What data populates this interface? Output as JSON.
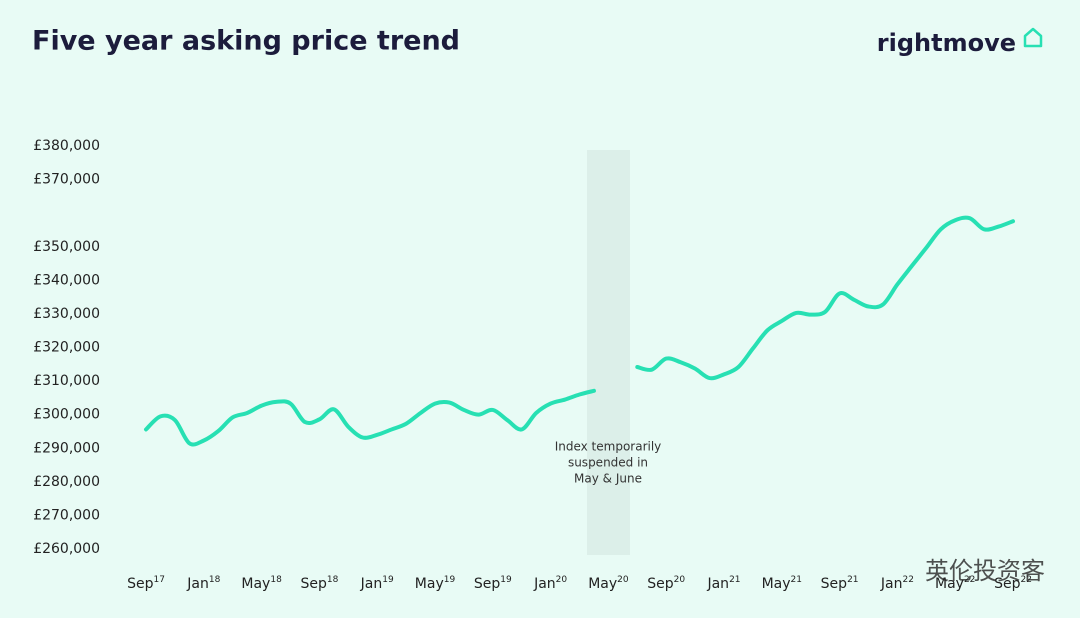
{
  "chart_data": {
    "type": "line",
    "title": "Five year asking price trend",
    "brand": "rightmove",
    "annotation": [
      "Index temporarily",
      "suspended in",
      "May & June"
    ],
    "watermark": "英伦投资客",
    "categories": [
      "Sep17",
      null,
      null,
      null,
      "Jan18",
      null,
      null,
      null,
      "May18",
      null,
      null,
      null,
      "Sep18",
      null,
      null,
      null,
      "Jan19",
      null,
      null,
      null,
      "May19",
      null,
      null,
      null,
      "Sep19",
      null,
      null,
      null,
      "Jan20",
      null,
      null,
      null,
      "May20",
      null,
      null,
      null,
      "Sep20",
      null,
      null,
      null,
      "Jan21",
      null,
      null,
      null,
      "May21",
      null,
      null,
      null,
      "Sep21",
      null,
      null,
      null,
      "Jan22",
      null,
      null,
      null,
      "May22",
      null,
      null,
      null,
      "Sep22"
    ],
    "series": [
      {
        "name": "Asking price",
        "color": "#27e0b3",
        "values": [
          295600,
          299500,
          298400,
          291500,
          292300,
          295100,
          299200,
          300500,
          302700,
          303800,
          303300,
          297800,
          298600,
          301600,
          296400,
          293200,
          294000,
          295600,
          297300,
          300500,
          303300,
          303600,
          301400,
          300000,
          301400,
          298400,
          295600,
          300500,
          303300,
          304500,
          306000,
          307100,
          null,
          null,
          314200,
          313400,
          316700,
          315600,
          313700,
          310900,
          312000,
          314200,
          319700,
          325100,
          327900,
          330300,
          329800,
          330600,
          336100,
          334200,
          332200,
          332800,
          338800,
          344300,
          349700,
          355200,
          357900,
          358500,
          355200,
          356000,
          357600
        ]
      }
    ],
    "ylim": [
      260000,
      380000
    ],
    "yticks": [
      {
        "value": 260000,
        "label": "£260,000"
      },
      {
        "value": 270000,
        "label": "£270,000"
      },
      {
        "value": 280000,
        "label": "£280,000"
      },
      {
        "value": 290000,
        "label": "£290,000"
      },
      {
        "value": 300000,
        "label": "£300,000"
      },
      {
        "value": 310000,
        "label": "£310,000"
      },
      {
        "value": 320000,
        "label": "£320,000"
      },
      {
        "value": 330000,
        "label": "£330,000"
      },
      {
        "value": 340000,
        "label": "£340,000"
      },
      {
        "value": 350000,
        "label": "£350,000"
      },
      {
        "value": 370000,
        "label": "£370,000"
      },
      {
        "value": 380000,
        "label": "£380,000"
      }
    ],
    "grid": false
  }
}
